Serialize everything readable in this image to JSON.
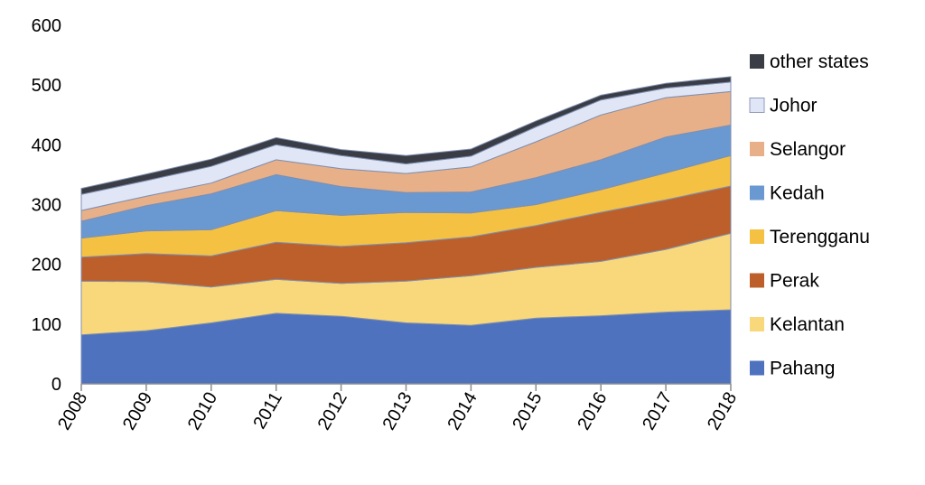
{
  "chart_data": {
    "type": "area",
    "stacked": true,
    "title": "",
    "xlabel": "",
    "ylabel": "",
    "x": [
      "2008",
      "2009",
      "2010",
      "2011",
      "2012",
      "2013",
      "2014",
      "2015",
      "2016",
      "2017",
      "2018"
    ],
    "ylim": [
      0,
      600
    ],
    "yticks": [
      "0",
      "100",
      "200",
      "300",
      "400",
      "500",
      "600"
    ],
    "grid": false,
    "legend_position": "right",
    "series": [
      {
        "name": "Pahang",
        "color": "#4e72be",
        "values": [
          82,
          89,
          102,
          118,
          113,
          102,
          98,
          110,
          114,
          120,
          124
        ]
      },
      {
        "name": "Kelantan",
        "color": "#f8d87a",
        "values": [
          90,
          82,
          60,
          57,
          55,
          70,
          83,
          85,
          91,
          105,
          128
        ]
      },
      {
        "name": "Perak",
        "color": "#bc5f2b",
        "values": [
          40,
          47,
          52,
          62,
          62,
          64,
          65,
          70,
          82,
          83,
          79
        ]
      },
      {
        "name": "Terengganu",
        "color": "#f4c143",
        "values": [
          32,
          38,
          44,
          53,
          52,
          51,
          40,
          35,
          38,
          45,
          51
        ]
      },
      {
        "name": "Kedah",
        "color": "#6a99d2",
        "values": [
          28,
          42,
          60,
          60,
          48,
          33,
          35,
          45,
          50,
          60,
          51
        ]
      },
      {
        "name": "Selangor",
        "color": "#e8b088",
        "values": [
          18,
          16,
          18,
          25,
          30,
          32,
          42,
          60,
          75,
          66,
          56
        ]
      },
      {
        "name": "Johor",
        "color": "#e0e6f6",
        "values": [
          27,
          26,
          28,
          25,
          22,
          16,
          18,
          25,
          25,
          16,
          16
        ]
      },
      {
        "name": "other states",
        "color": "#3a3d45",
        "values": [
          10,
          11,
          12,
          12,
          10,
          14,
          12,
          10,
          8,
          8,
          9
        ]
      }
    ]
  }
}
